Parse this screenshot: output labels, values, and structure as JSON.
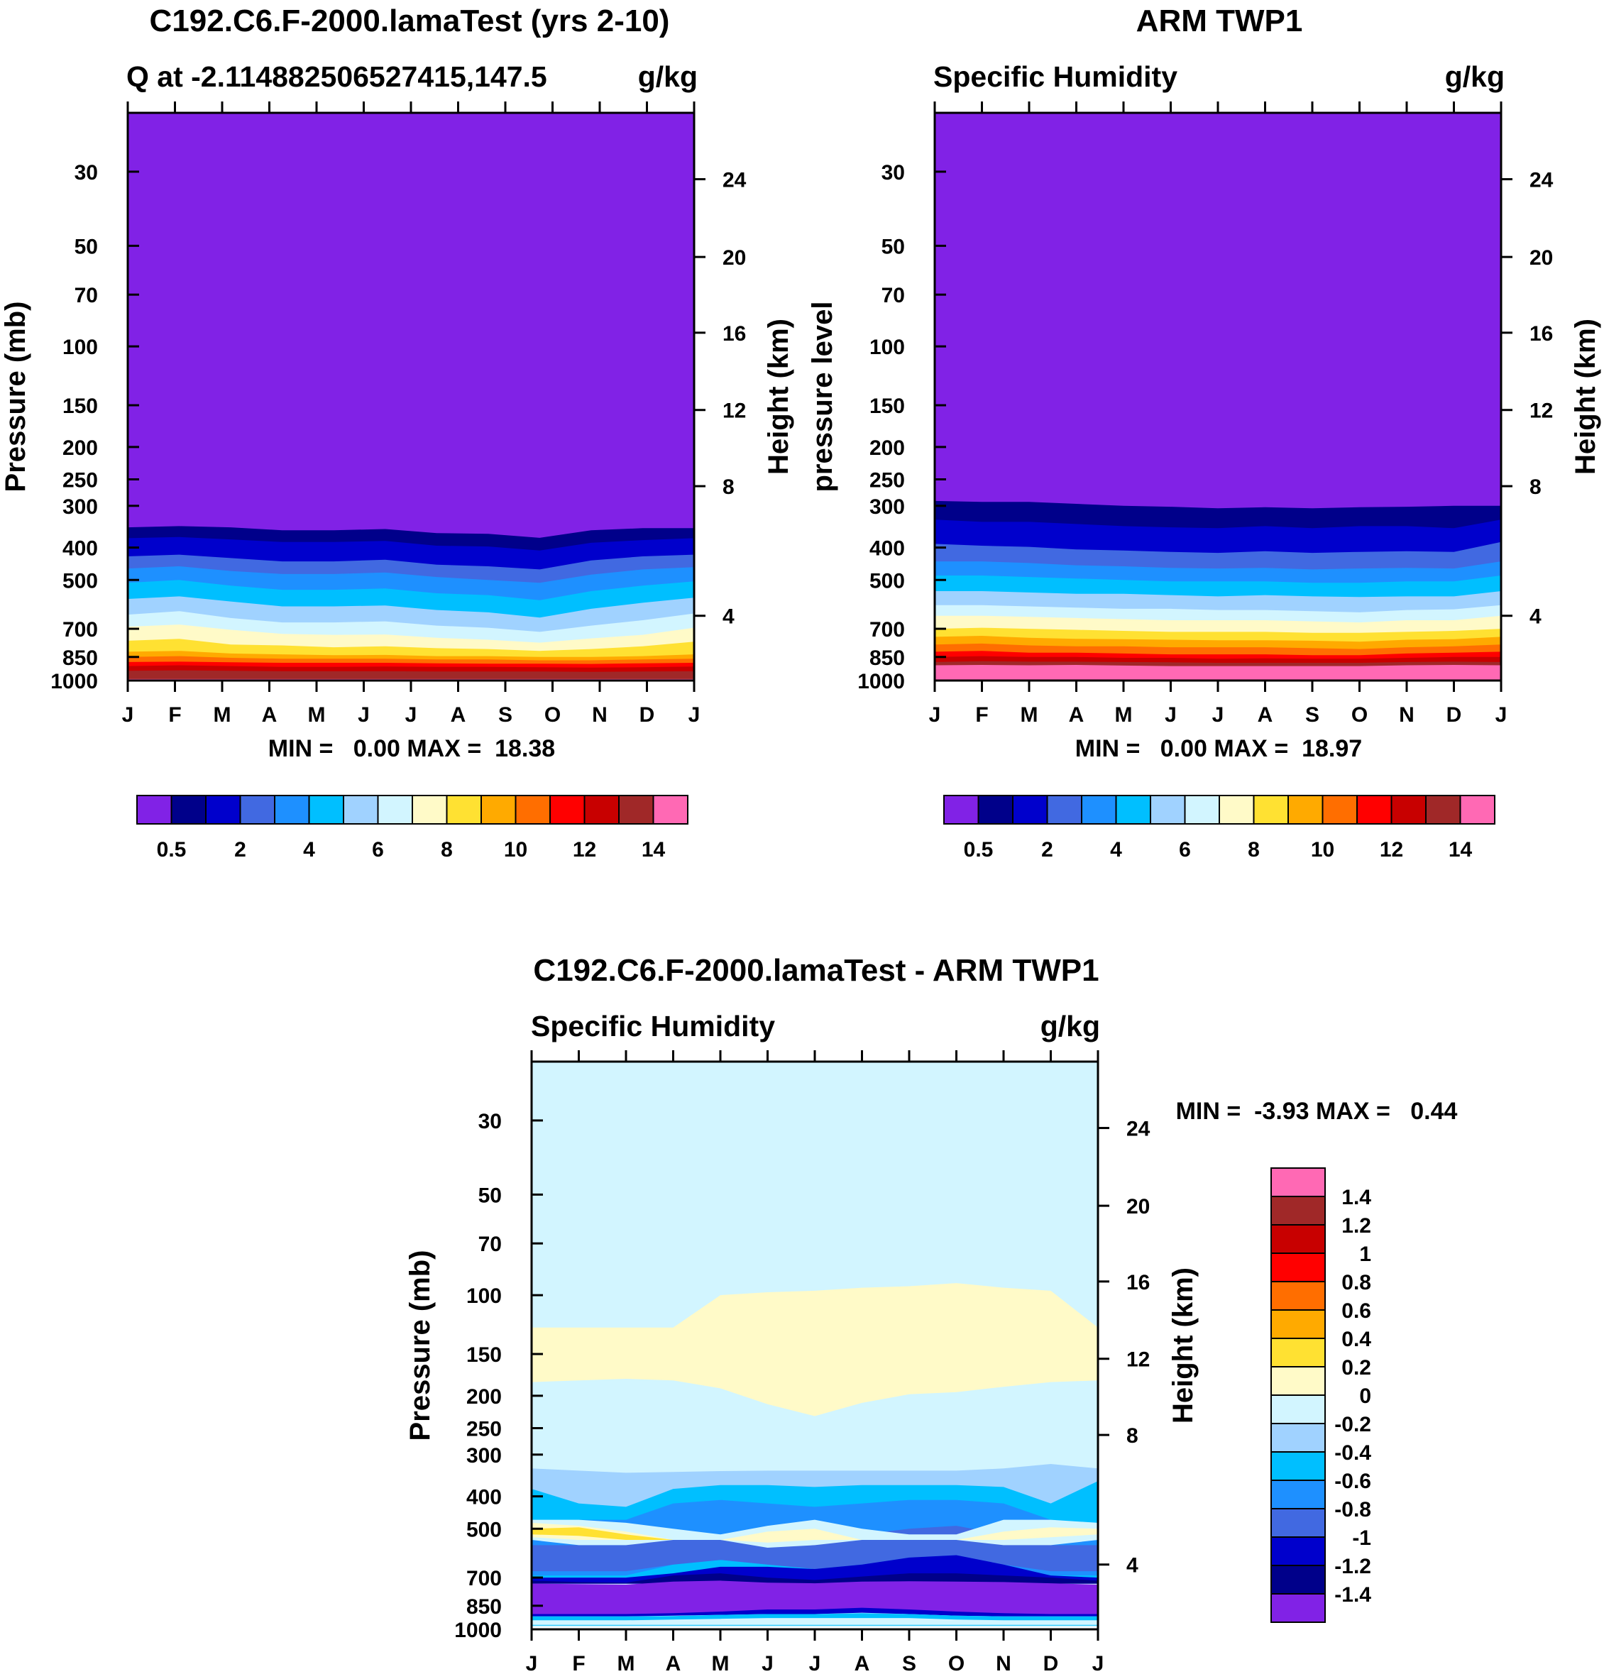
{
  "colors": {
    "q_levels": [
      "#8122e6",
      "#00008a",
      "#0000cc",
      "#4169e1",
      "#1e90ff",
      "#00bfff",
      "#a0d2ff",
      "#d2f5ff",
      "#fffac8",
      "#ffe132",
      "#ffaa00",
      "#ff6e00",
      "#ff0000",
      "#c80000",
      "#a02828",
      "#ff69b4"
    ],
    "diff_levels": [
      "#8122e6",
      "#00008a",
      "#0000cc",
      "#4169e1",
      "#1e90ff",
      "#00bfff",
      "#a0d2ff",
      "#d2f5ff",
      "#fffac8",
      "#ffe132",
      "#ffaa00",
      "#ff6e00",
      "#ff0000",
      "#c80000",
      "#a02828",
      "#ff69b4"
    ]
  },
  "chart_data": [
    {
      "type": "heatmap",
      "title": "C192.C6.F-2000.lamaTest (yrs 2-10)",
      "subtitle_left": "Q at -2.114882506527415,147.5",
      "subtitle_right": "g/kg",
      "ylabel": "Pressure (mb)",
      "ylabel_right": "Height (km)",
      "y_ticks": [
        "30",
        "50",
        "70",
        "100",
        "150",
        "200",
        "250",
        "300",
        "400",
        "500",
        "700",
        "850",
        "1000"
      ],
      "y_tick_values": [
        30,
        50,
        70,
        100,
        150,
        200,
        250,
        300,
        400,
        500,
        700,
        850,
        1000
      ],
      "height_ticks": [
        "24",
        "20",
        "16",
        "12",
        "8",
        "4"
      ],
      "height_tick_pressures": [
        31.6,
        54.0,
        91.0,
        155.0,
        262.0,
        640.0
      ],
      "ylim": [
        20,
        1000
      ],
      "months": [
        "J",
        "F",
        "M",
        "A",
        "M",
        "J",
        "J",
        "A",
        "S",
        "O",
        "N",
        "D",
        "J"
      ],
      "stats": "MIN =   0.00 MAX =  18.38",
      "colorbar_labels": [
        "0.5",
        "2",
        "4",
        "6",
        "8",
        "10",
        "12",
        "14"
      ],
      "boundaries": [
        [
          348,
          345,
          348,
          355,
          355,
          352,
          362,
          364,
          374,
          355,
          350,
          350
        ],
        [
          375,
          372,
          378,
          385,
          385,
          382,
          395,
          397,
          408,
          387,
          380,
          375
        ],
        [
          425,
          420,
          430,
          440,
          440,
          435,
          450,
          455,
          465,
          437,
          425,
          420
        ],
        [
          462,
          455,
          470,
          480,
          480,
          475,
          490,
          500,
          510,
          482,
          465,
          458
        ],
        [
          510,
          500,
          520,
          535,
          535,
          530,
          548,
          555,
          575,
          540,
          520,
          505
        ],
        [
          570,
          560,
          580,
          600,
          600,
          596,
          615,
          625,
          648,
          610,
          585,
          565
        ],
        [
          635,
          620,
          650,
          670,
          670,
          665,
          685,
          695,
          715,
          685,
          660,
          630
        ],
        [
          690,
          680,
          705,
          725,
          730,
          728,
          745,
          755,
          770,
          748,
          730,
          695
        ],
        [
          760,
          750,
          780,
          785,
          795,
          790,
          800,
          805,
          815,
          805,
          790,
          765
        ],
        [
          820,
          815,
          830,
          835,
          840,
          838,
          845,
          845,
          850,
          850,
          845,
          835
        ],
        [
          850,
          845,
          855,
          860,
          860,
          860,
          865,
          865,
          870,
          870,
          865,
          860
        ],
        [
          880,
          878,
          882,
          885,
          885,
          885,
          888,
          890,
          890,
          892,
          888,
          885
        ],
        [
          905,
          900,
          905,
          910,
          910,
          908,
          910,
          910,
          912,
          915,
          912,
          908
        ],
        [
          935,
          932,
          935,
          938,
          938,
          938,
          940,
          940,
          940,
          942,
          940,
          938
        ],
        [
          990,
          990,
          990,
          990,
          990,
          990,
          990,
          990,
          990,
          990,
          990,
          990
        ]
      ]
    },
    {
      "type": "heatmap",
      "title": "ARM TWP1",
      "subtitle_left": "Specific Humidity",
      "subtitle_right": "g/kg",
      "ylabel": "pressure level",
      "ylabel_right": "Height (km)",
      "y_ticks": [
        "30",
        "50",
        "70",
        "100",
        "150",
        "200",
        "250",
        "300",
        "400",
        "500",
        "700",
        "850",
        "1000"
      ],
      "y_tick_values": [
        30,
        50,
        70,
        100,
        150,
        200,
        250,
        300,
        400,
        500,
        700,
        850,
        1000
      ],
      "height_ticks": [
        "24",
        "20",
        "16",
        "12",
        "8",
        "4"
      ],
      "height_tick_pressures": [
        31.6,
        54.0,
        91.0,
        155.0,
        262.0,
        640.0
      ],
      "ylim": [
        20,
        1000
      ],
      "months": [
        "J",
        "F",
        "M",
        "A",
        "M",
        "J",
        "J",
        "A",
        "S",
        "O",
        "N",
        "D",
        "J"
      ],
      "stats": "MIN =   0.00 MAX =  18.97",
      "colorbar_labels": [
        "0.5",
        "2",
        "4",
        "6",
        "8",
        "10",
        "12",
        "14"
      ],
      "boundaries": [
        [
          290,
          292,
          292,
          296,
          300,
          302,
          305,
          303,
          305,
          303,
          302,
          300,
          300
        ],
        [
          330,
          335,
          335,
          340,
          345,
          348,
          350,
          345,
          350,
          345,
          345,
          350,
          330
        ],
        [
          390,
          395,
          398,
          405,
          408,
          412,
          415,
          410,
          415,
          412,
          410,
          412,
          385
        ],
        [
          440,
          440,
          445,
          452,
          455,
          460,
          462,
          460,
          465,
          462,
          460,
          462,
          440
        ],
        [
          485,
          485,
          490,
          495,
          500,
          505,
          505,
          505,
          510,
          510,
          505,
          505,
          485
        ],
        [
          540,
          540,
          545,
          550,
          550,
          555,
          560,
          555,
          560,
          562,
          560,
          560,
          540
        ],
        [
          595,
          595,
          600,
          605,
          610,
          610,
          615,
          615,
          620,
          625,
          615,
          612,
          595
        ],
        [
          640,
          640,
          645,
          650,
          655,
          660,
          660,
          660,
          665,
          670,
          660,
          660,
          640
        ],
        [
          700,
          695,
          700,
          705,
          710,
          715,
          715,
          715,
          720,
          720,
          715,
          710,
          700
        ],
        [
          740,
          735,
          745,
          750,
          752,
          755,
          758,
          758,
          760,
          765,
          755,
          752,
          740
        ],
        [
          780,
          775,
          785,
          790,
          790,
          795,
          795,
          795,
          800,
          805,
          795,
          790,
          780
        ],
        [
          820,
          815,
          825,
          825,
          830,
          835,
          835,
          835,
          840,
          840,
          830,
          825,
          820
        ],
        [
          850,
          845,
          850,
          850,
          855,
          855,
          860,
          858,
          860,
          860,
          855,
          850,
          850
        ],
        [
          880,
          875,
          878,
          878,
          880,
          882,
          885,
          885,
          885,
          885,
          880,
          878,
          880
        ],
        [
          900,
          898,
          900,
          898,
          902,
          905,
          905,
          905,
          905,
          905,
          900,
          898,
          900
        ]
      ]
    },
    {
      "type": "heatmap",
      "title": "C192.C6.F-2000.lamaTest - ARM TWP1",
      "subtitle_left": "Specific Humidity",
      "subtitle_right": "g/kg",
      "ylabel": "Pressure (mb)",
      "ylabel_right": "Height (km)",
      "y_ticks": [
        "30",
        "50",
        "70",
        "100",
        "150",
        "200",
        "250",
        "300",
        "400",
        "500",
        "700",
        "850",
        "1000"
      ],
      "y_tick_values": [
        30,
        50,
        70,
        100,
        150,
        200,
        250,
        300,
        400,
        500,
        700,
        850,
        1000
      ],
      "height_ticks": [
        "24",
        "20",
        "16",
        "12",
        "8",
        "4"
      ],
      "height_tick_pressures": [
        31.6,
        54.0,
        91.0,
        155.0,
        262.0,
        640.0
      ],
      "ylim": [
        20,
        1000
      ],
      "months": [
        "J",
        "F",
        "M",
        "A",
        "M",
        "J",
        "J",
        "A",
        "S",
        "O",
        "N",
        "D",
        "J"
      ],
      "stats": "MIN =  -3.93 MAX =   0.44",
      "colorbar_labels": [
        "1.4",
        "1.2",
        "1",
        "0.8",
        "0.6",
        "0.4",
        "0.2",
        "0",
        "-0.2",
        "-0.4",
        "-0.6",
        "-0.8",
        "-1",
        "-1.2",
        "-1.4"
      ],
      "background_level": 7,
      "bands": [
        {
          "level": 8,
          "top": [
            125,
            125,
            125,
            125,
            100,
            98,
            97,
            95,
            94,
            92,
            95,
            97,
            125
          ],
          "bottom": [
            182,
            180,
            178,
            180,
            190,
            212,
            230,
            210,
            198,
            195,
            188,
            182,
            180
          ]
        },
        {
          "level": 6,
          "top": [
            330,
            335,
            340,
            338,
            336,
            335,
            335,
            335,
            335,
            335,
            330,
            320,
            330
          ],
          "bottom": [
            700,
            700,
            700,
            700,
            700,
            700,
            700,
            700,
            700,
            700,
            700,
            700,
            700
          ]
        },
        {
          "level": 5,
          "top": [
            380,
            420,
            430,
            380,
            370,
            370,
            375,
            370,
            370,
            370,
            375,
            420,
            360
          ],
          "bottom": [
            700,
            700,
            700,
            700,
            700,
            700,
            700,
            700,
            700,
            700,
            700,
            700,
            700
          ]
        },
        {
          "level": 4,
          "top": [
            480,
            470,
            470,
            420,
            410,
            420,
            430,
            420,
            410,
            410,
            420,
            470,
            480
          ],
          "bottom": [
            690,
            690,
            690,
            640,
            620,
            640,
            660,
            640,
            620,
            620,
            640,
            690,
            690
          ]
        },
        {
          "level": 3,
          "top": [
            560,
            560,
            560,
            530,
            520,
            530,
            540,
            520,
            500,
            490,
            520,
            560,
            560
          ],
          "bottom": [
            670,
            670,
            670,
            640,
            620,
            640,
            660,
            640,
            610,
            600,
            640,
            670,
            670
          ]
        },
        {
          "level": 7,
          "top": [
            470,
            470,
            480,
            500,
            520,
            490,
            470,
            500,
            520,
            520,
            470,
            470,
            480
          ],
          "bottom": [
            540,
            560,
            560,
            540,
            540,
            570,
            560,
            540,
            540,
            540,
            560,
            560,
            540
          ]
        },
        {
          "level": 8,
          "top": [
            480,
            490,
            510,
            540,
            540,
            510,
            500,
            540,
            540,
            540,
            510,
            495,
            500
          ],
          "bottom": [
            530,
            540,
            540,
            540,
            540,
            550,
            540,
            540,
            540,
            540,
            540,
            530,
            520
          ]
        },
        {
          "level": 9,
          "top": [
            500,
            495,
            520,
            540,
            540,
            540,
            540,
            540,
            540,
            540,
            540,
            540,
            540
          ],
          "bottom": [
            520,
            525,
            540,
            540,
            540,
            540,
            540,
            540,
            540,
            540,
            540,
            540,
            540
          ]
        },
        {
          "level": 2,
          "top": [
            700,
            700,
            700,
            680,
            650,
            650,
            660,
            640,
            610,
            600,
            640,
            690,
            700
          ],
          "bottom": [
            730,
            730,
            730,
            730,
            730,
            730,
            730,
            730,
            730,
            730,
            730,
            730,
            730
          ]
        },
        {
          "level": 1,
          "top": [
            715,
            722,
            725,
            690,
            680,
            700,
            712,
            695,
            680,
            680,
            690,
            700,
            715
          ],
          "bottom": [
            730,
            730,
            730,
            730,
            730,
            730,
            730,
            730,
            730,
            730,
            730,
            730,
            730
          ]
        },
        {
          "level": 0,
          "top": [
            730,
            732,
            735,
            720,
            715,
            725,
            728,
            720,
            718,
            720,
            722,
            728,
            735
          ],
          "bottom": [
            900,
            900,
            900,
            900,
            900,
            880,
            880,
            870,
            880,
            890,
            900,
            900,
            900
          ]
        },
        {
          "level": 2,
          "top": [
            900,
            900,
            900,
            895,
            885,
            872,
            872,
            862,
            872,
            885,
            895,
            900,
            900
          ],
          "bottom": [
            915,
            915,
            915,
            910,
            905,
            900,
            900,
            892,
            900,
            910,
            915,
            915,
            915
          ]
        },
        {
          "level": 5,
          "top": [
            915,
            915,
            915,
            912,
            905,
            900,
            900,
            895,
            900,
            910,
            915,
            915,
            915
          ],
          "bottom": [
            975,
            975,
            975,
            975,
            975,
            975,
            975,
            975,
            975,
            975,
            975,
            975,
            975
          ]
        },
        {
          "level": 7,
          "top": [
            940,
            940,
            940,
            935,
            930,
            925,
            925,
            925,
            925,
            935,
            940,
            940,
            940
          ],
          "bottom": [
            970,
            970,
            970,
            970,
            970,
            970,
            970,
            970,
            970,
            970,
            970,
            970,
            970
          ]
        }
      ]
    }
  ]
}
